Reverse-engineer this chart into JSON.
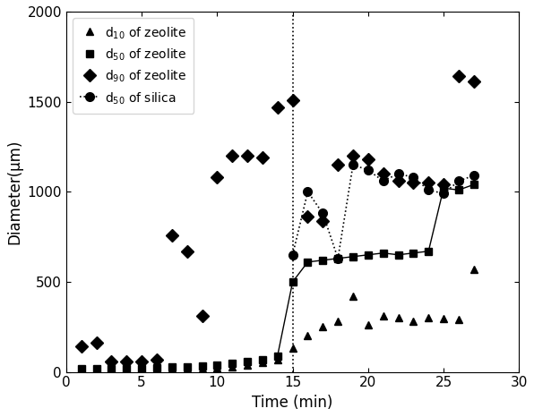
{
  "d10_zeolite_x": [
    1,
    2,
    3,
    4,
    5,
    6,
    7,
    8,
    9,
    10,
    11,
    12,
    13,
    14,
    15,
    16,
    17,
    18,
    19,
    20,
    21,
    22,
    23,
    24,
    25,
    26,
    27
  ],
  "d10_zeolite_y": [
    15,
    15,
    15,
    15,
    15,
    15,
    20,
    20,
    20,
    25,
    30,
    40,
    55,
    70,
    130,
    200,
    250,
    280,
    420,
    260,
    310,
    300,
    280,
    300,
    295,
    290,
    570
  ],
  "d50_zeolite_x_pre": [
    1,
    2,
    3,
    4,
    5,
    6,
    7,
    8,
    9,
    10,
    11,
    12,
    13
  ],
  "d50_zeolite_y_pre": [
    20,
    20,
    20,
    20,
    20,
    25,
    30,
    30,
    35,
    40,
    50,
    60,
    70
  ],
  "d50_zeolite_x_post": [
    14,
    15,
    16,
    17,
    18,
    19,
    20,
    21,
    22,
    23,
    24,
    25,
    26,
    27
  ],
  "d50_zeolite_y_post": [
    90,
    500,
    610,
    620,
    630,
    640,
    650,
    660,
    650,
    660,
    670,
    1020,
    1010,
    1040
  ],
  "d90_zeolite_x": [
    1,
    2,
    3,
    4,
    5,
    6,
    7,
    8,
    9,
    10,
    11,
    12,
    13,
    14,
    15,
    16,
    17,
    18,
    19,
    20,
    21,
    22,
    23,
    24,
    25,
    26,
    27
  ],
  "d90_zeolite_y": [
    140,
    160,
    60,
    60,
    60,
    70,
    760,
    670,
    310,
    1080,
    1200,
    1200,
    1190,
    1470,
    1510,
    860,
    840,
    1150,
    1200,
    1180,
    1100,
    1060,
    1050,
    1050,
    1040,
    1640,
    1610
  ],
  "d50_silica_x": [
    15,
    16,
    17,
    18,
    19,
    20,
    21,
    22,
    23,
    24,
    25,
    26,
    27
  ],
  "d50_silica_y": [
    650,
    1000,
    880,
    630,
    1150,
    1120,
    1060,
    1100,
    1080,
    1010,
    990,
    1060,
    1090
  ],
  "vline_x": 15,
  "xlim": [
    0,
    30
  ],
  "ylim": [
    0,
    2000
  ],
  "xlabel": "Time (min)",
  "ylabel": "Diameter(μm)",
  "xticks": [
    0,
    5,
    10,
    15,
    20,
    25,
    30
  ],
  "yticks": [
    0,
    500,
    1000,
    1500,
    2000
  ],
  "legend_labels": [
    "d$_{10}$ of zeolite",
    "d$_{50}$ of zeolite",
    "d$_{90}$ of zeolite",
    "d$_{50}$ of silica"
  ],
  "marker_color": "black",
  "fontsize": 12,
  "tick_labelsize": 11
}
